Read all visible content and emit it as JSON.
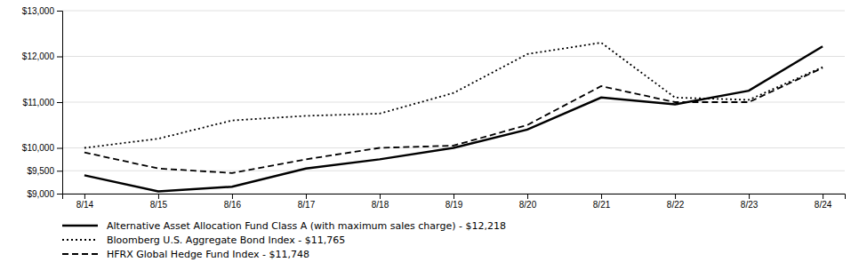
{
  "chart_data": {
    "type": "line",
    "categories": [
      "8/14",
      "8/15",
      "8/16",
      "8/17",
      "8/18",
      "8/19",
      "8/20",
      "8/21",
      "8/22",
      "8/23",
      "8/24"
    ],
    "series": [
      {
        "name": "Alternative Asset Allocation Fund Class A (with maximum sales charge)  - $12,218",
        "color": "#000000",
        "line_style": "solid",
        "values": [
          9400,
          9050,
          9150,
          9550,
          9750,
          10000,
          10400,
          11100,
          10950,
          11250,
          12218
        ]
      },
      {
        "name": "Bloomberg U.S. Aggregate Bond Index - $11,765",
        "color": "#000000",
        "line_style": "dotted",
        "values": [
          10000,
          10200,
          10600,
          10700,
          10750,
          11200,
          12050,
          12300,
          11100,
          11050,
          11765
        ]
      },
      {
        "name": "HFRX Global Hedge Fund Index - $11,748",
        "color": "#000000",
        "line_style": "dashed",
        "values": [
          9900,
          9550,
          9450,
          9750,
          10000,
          10050,
          10500,
          11350,
          11000,
          11000,
          11748
        ]
      }
    ],
    "ylim": [
      9000,
      13000
    ],
    "yticks": [
      {
        "value": 9000,
        "label": "$9,000"
      },
      {
        "value": 9500,
        "label": "$9,500"
      },
      {
        "value": 10000,
        "label": "$10,000"
      },
      {
        "value": 11000,
        "label": "$11,000"
      },
      {
        "value": 12000,
        "label": "$12,000"
      },
      {
        "value": 13000,
        "label": "$13,000"
      }
    ],
    "grid": true,
    "legend": "bottom"
  }
}
